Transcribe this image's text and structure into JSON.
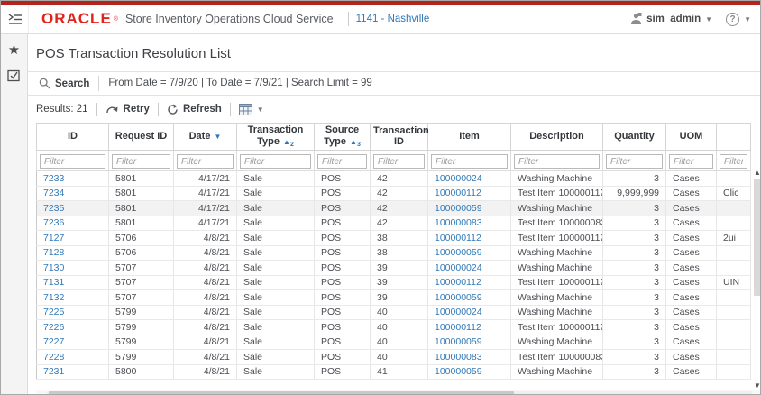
{
  "header": {
    "brand": "ORACLE",
    "brand_reg": "®",
    "app_title": "Store Inventory Operations Cloud Service",
    "store": "1141 - Nashville",
    "user": "sim_admin",
    "help": "?"
  },
  "page": {
    "title": "POS Transaction Resolution List"
  },
  "search": {
    "label": "Search",
    "criteria": "From Date = 7/9/20 | To Date = 7/9/21 | Search Limit = 99"
  },
  "toolbar": {
    "results_label": "Results: 21",
    "retry_label": "Retry",
    "refresh_label": "Refresh"
  },
  "table": {
    "filter_placeholder": "Filter",
    "selected_row_id": "7235",
    "columns": [
      {
        "key": "id",
        "label": "ID",
        "link": true
      },
      {
        "key": "request-id",
        "label": "Request ID"
      },
      {
        "key": "date",
        "label": "Date",
        "align": "right",
        "sort": {
          "dir": "desc",
          "order": ""
        }
      },
      {
        "key": "transaction-type",
        "label": "Transaction Type",
        "sort": {
          "dir": "asc",
          "order": "2"
        }
      },
      {
        "key": "source-type",
        "label": "Source Type",
        "sort": {
          "dir": "asc",
          "order": "3"
        }
      },
      {
        "key": "transaction-id",
        "label": "Transaction ID"
      },
      {
        "key": "item",
        "label": "Item",
        "link": true
      },
      {
        "key": "description",
        "label": "Description"
      },
      {
        "key": "quantity",
        "label": "Quantity",
        "align": "right"
      },
      {
        "key": "uom",
        "label": "UOM"
      },
      {
        "key": "uin",
        "label": ""
      }
    ],
    "rows": [
      [
        "7233",
        "5801",
        "4/17/21",
        "Sale",
        "POS",
        "42",
        "100000024",
        "Washing Machine",
        "3",
        "Cases",
        ""
      ],
      [
        "7234",
        "5801",
        "4/17/21",
        "Sale",
        "POS",
        "42",
        "100000112",
        "Test Item 100000112",
        "9,999,999",
        "Cases",
        "Clic"
      ],
      [
        "7235",
        "5801",
        "4/17/21",
        "Sale",
        "POS",
        "42",
        "100000059",
        "Washing Machine",
        "3",
        "Cases",
        ""
      ],
      [
        "7236",
        "5801",
        "4/17/21",
        "Sale",
        "POS",
        "42",
        "100000083",
        "Test Item 100000083",
        "3",
        "Cases",
        ""
      ],
      [
        "7127",
        "5706",
        "4/8/21",
        "Sale",
        "POS",
        "38",
        "100000112",
        "Test Item 100000112",
        "3",
        "Cases",
        "2ui"
      ],
      [
        "7128",
        "5706",
        "4/8/21",
        "Sale",
        "POS",
        "38",
        "100000059",
        "Washing Machine",
        "3",
        "Cases",
        ""
      ],
      [
        "7130",
        "5707",
        "4/8/21",
        "Sale",
        "POS",
        "39",
        "100000024",
        "Washing Machine",
        "3",
        "Cases",
        ""
      ],
      [
        "7131",
        "5707",
        "4/8/21",
        "Sale",
        "POS",
        "39",
        "100000112",
        "Test Item 100000112",
        "3",
        "Cases",
        "UIN"
      ],
      [
        "7132",
        "5707",
        "4/8/21",
        "Sale",
        "POS",
        "39",
        "100000059",
        "Washing Machine",
        "3",
        "Cases",
        ""
      ],
      [
        "7225",
        "5799",
        "4/8/21",
        "Sale",
        "POS",
        "40",
        "100000024",
        "Washing Machine",
        "3",
        "Cases",
        ""
      ],
      [
        "7226",
        "5799",
        "4/8/21",
        "Sale",
        "POS",
        "40",
        "100000112",
        "Test Item 100000112",
        "3",
        "Cases",
        ""
      ],
      [
        "7227",
        "5799",
        "4/8/21",
        "Sale",
        "POS",
        "40",
        "100000059",
        "Washing Machine",
        "3",
        "Cases",
        ""
      ],
      [
        "7228",
        "5799",
        "4/8/21",
        "Sale",
        "POS",
        "40",
        "100000083",
        "Test Item 100000083",
        "3",
        "Cases",
        ""
      ],
      [
        "7231",
        "5800",
        "4/8/21",
        "Sale",
        "POS",
        "41",
        "100000059",
        "Washing Machine",
        "3",
        "Cases",
        ""
      ]
    ]
  },
  "colors": {
    "strip-red": "#b3241c",
    "brand-red": "#e2231a",
    "link-blue": "#3079b8",
    "sort-blue": "#2b76bb",
    "highlight": "#f2f2f2"
  }
}
